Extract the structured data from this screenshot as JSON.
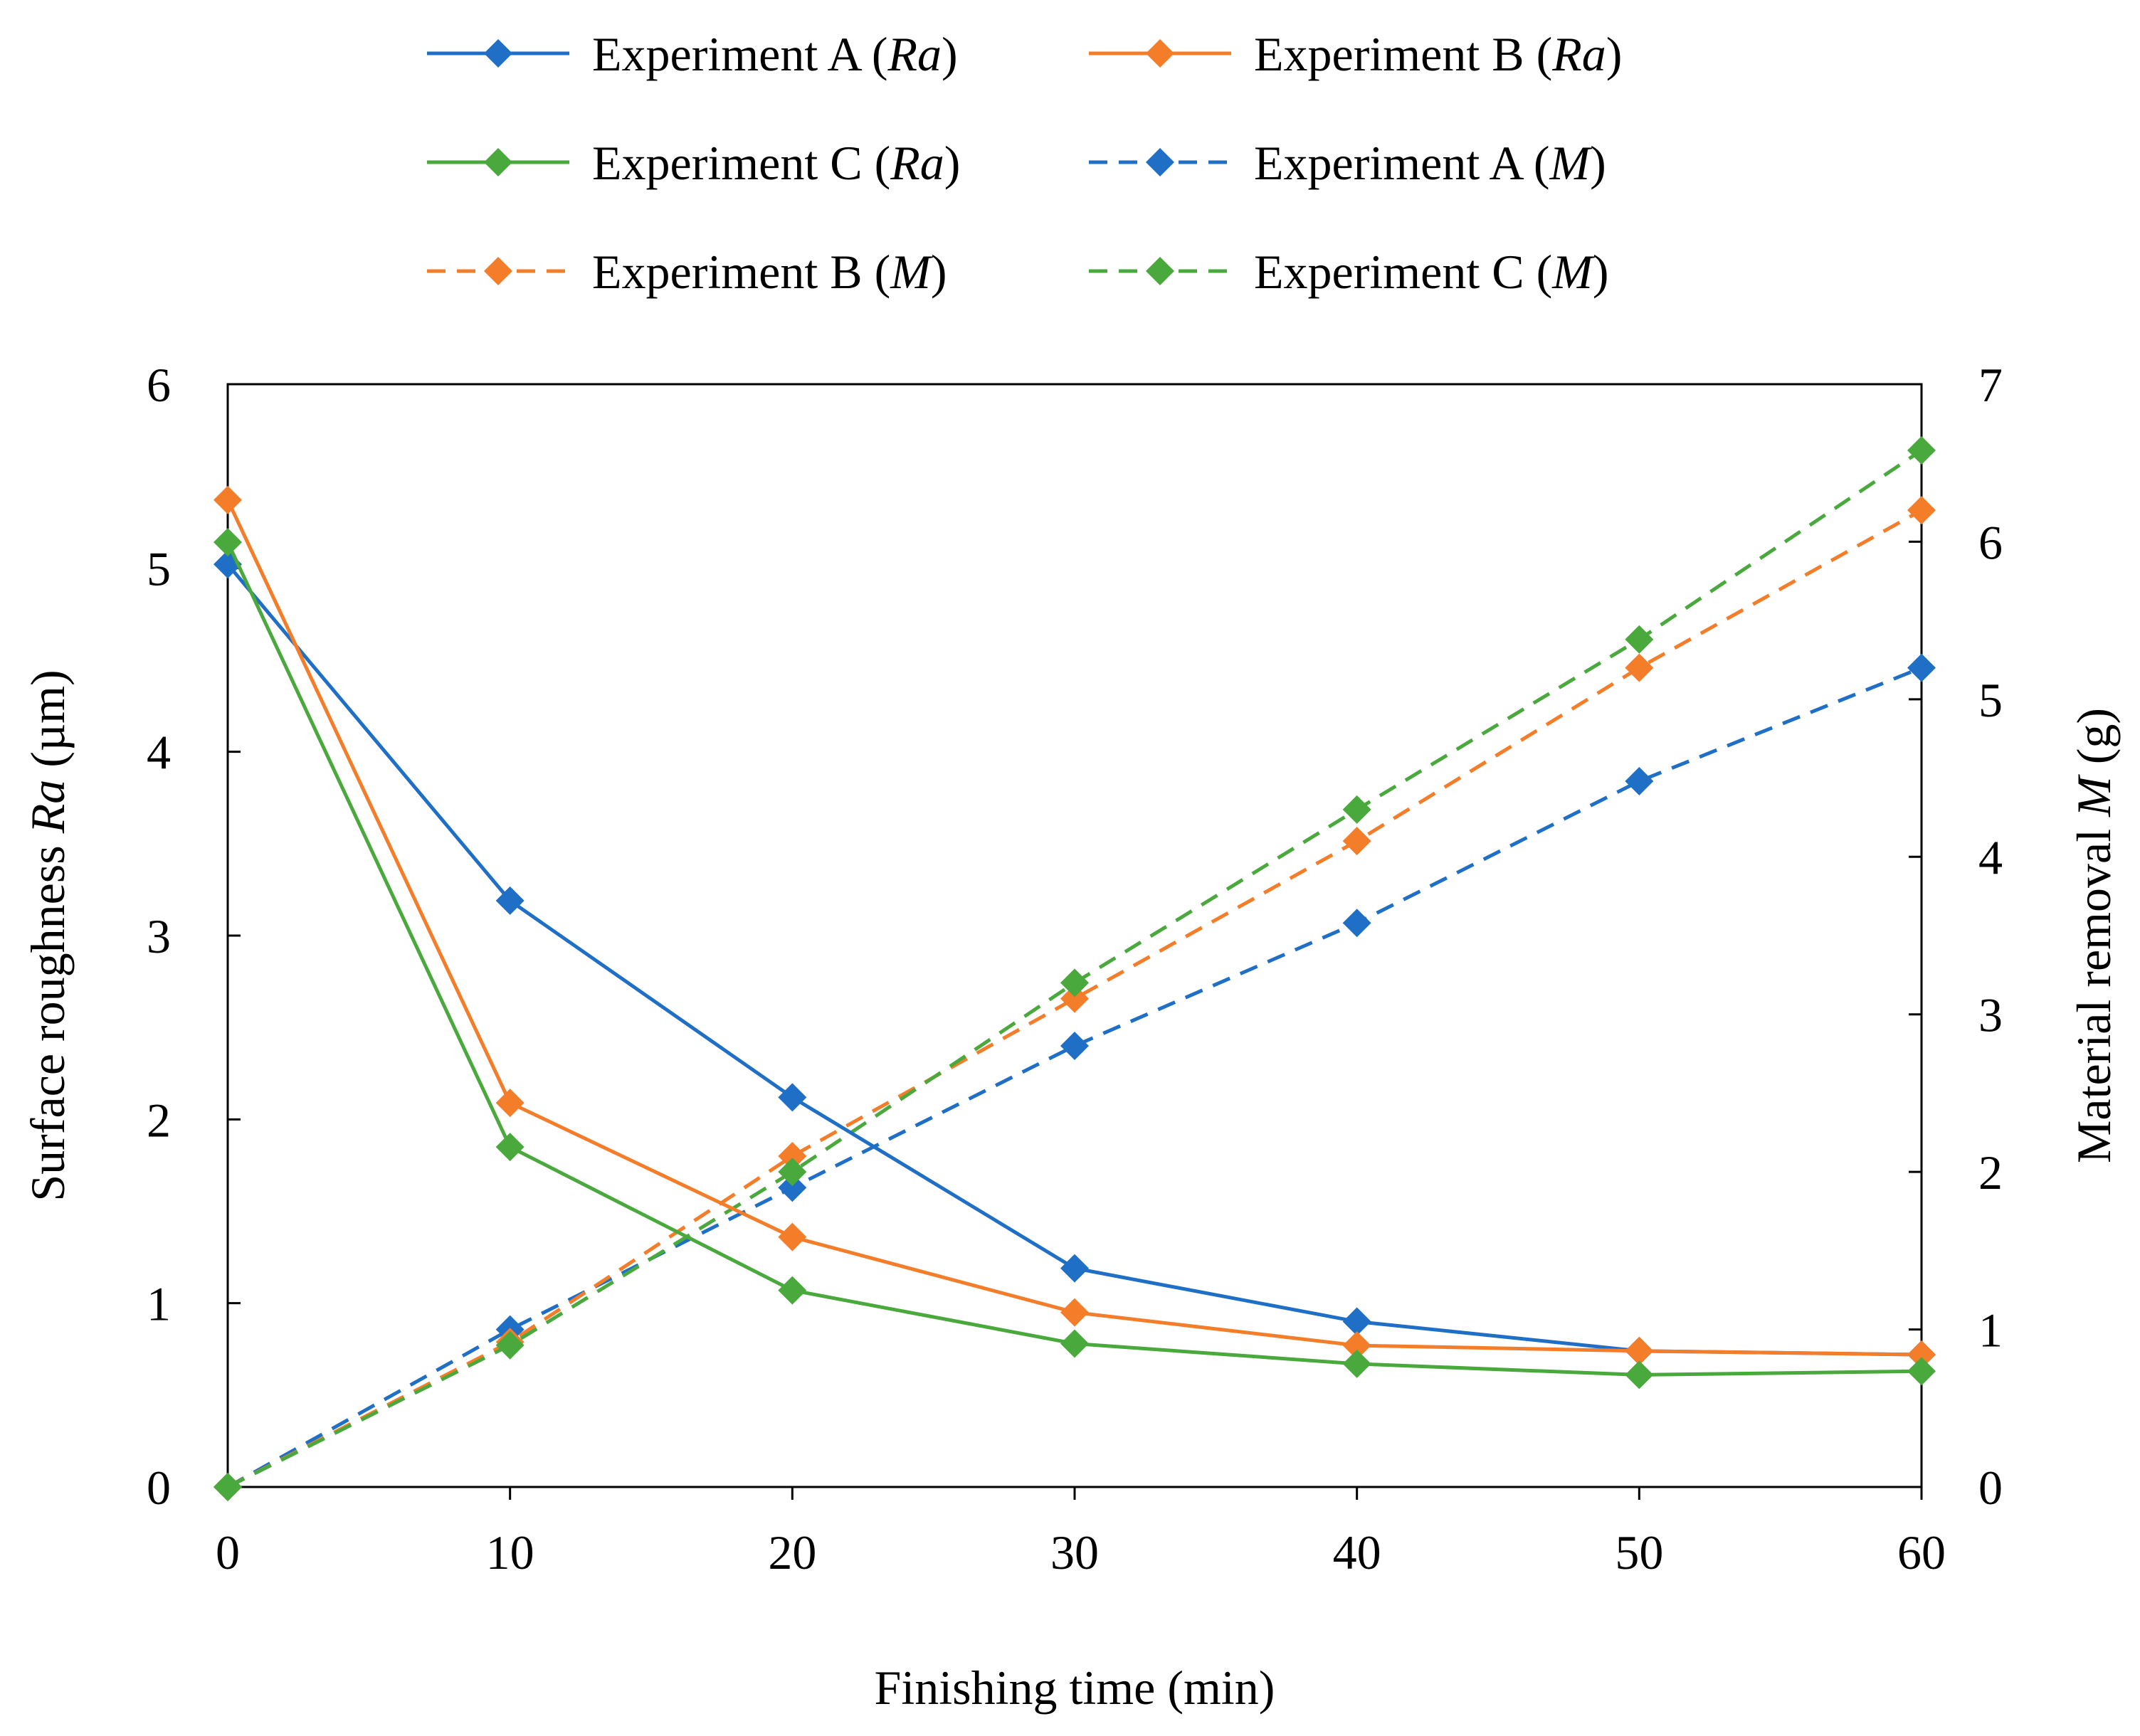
{
  "chart_data": {
    "type": "line",
    "x": [
      0,
      10,
      20,
      30,
      40,
      50,
      60
    ],
    "xlabel": "Finishing time (min)",
    "ylabel_left": {
      "text": "Surface roughness ",
      "italic": "Ra",
      "suffix": " (µm)"
    },
    "ylabel_right": {
      "text": "Material removal ",
      "italic": "M",
      "suffix": " (g)"
    },
    "xlim": [
      0,
      60
    ],
    "ylim_left": [
      0,
      6
    ],
    "ylim_right": [
      0,
      7
    ],
    "xticks": [
      0,
      10,
      20,
      30,
      40,
      50,
      60
    ],
    "yticks_left": [
      0,
      1,
      2,
      3,
      4,
      5,
      6
    ],
    "yticks_right": [
      0,
      1,
      2,
      3,
      4,
      5,
      6,
      7
    ],
    "grid": false,
    "legend_position": "top",
    "series": [
      {
        "name": "Experiment A",
        "tag": "Ra",
        "axis": "left",
        "color": "#1f6fc6",
        "dashed": false,
        "values": [
          5.02,
          3.19,
          2.12,
          1.19,
          0.9,
          0.74,
          0.72
        ]
      },
      {
        "name": "Experiment B",
        "tag": "Ra",
        "axis": "left",
        "color": "#f47d2a",
        "dashed": false,
        "values": [
          5.37,
          2.09,
          1.36,
          0.95,
          0.77,
          0.74,
          0.72
        ]
      },
      {
        "name": "Experiment C",
        "tag": "Ra",
        "axis": "left",
        "color": "#4aa93c",
        "dashed": false,
        "values": [
          5.14,
          1.85,
          1.07,
          0.78,
          0.67,
          0.61,
          0.63
        ]
      },
      {
        "name": "Experiment A",
        "tag": "M",
        "axis": "right",
        "color": "#1f6fc6",
        "dashed": true,
        "values": [
          0,
          1.0,
          1.9,
          2.8,
          3.58,
          4.48,
          5.2
        ]
      },
      {
        "name": "Experiment B",
        "tag": "M",
        "axis": "right",
        "color": "#f47d2a",
        "dashed": true,
        "values": [
          0,
          0.92,
          2.1,
          3.1,
          4.1,
          5.2,
          6.2
        ]
      },
      {
        "name": "Experiment C",
        "tag": "M",
        "axis": "right",
        "color": "#4aa93c",
        "dashed": true,
        "values": [
          0,
          0.9,
          2.0,
          3.2,
          4.3,
          5.38,
          6.58
        ]
      }
    ]
  }
}
